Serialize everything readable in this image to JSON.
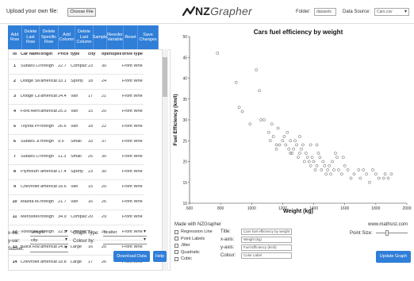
{
  "header": {
    "upload_label": "Upload your own file:",
    "choose_file": "Choose File",
    "logo_prefix": "NZ",
    "logo_suffix": "Grapher",
    "folder_label": "Folder:",
    "folder_value": "datasets",
    "source_label": "Data Source:",
    "source_value": "Cars.csv"
  },
  "table_buttons": [
    {
      "label": "Add Row"
    },
    {
      "label": "Delete Last Row"
    },
    {
      "label": "Delete Specific Row"
    },
    {
      "label": "Add Column"
    },
    {
      "label": "Delete Last Column"
    },
    {
      "label": "Sample"
    },
    {
      "label": "Reorder Variable"
    },
    {
      "label": "Reset"
    },
    {
      "label": "Save Changes"
    }
  ],
  "table": {
    "headers": [
      "id",
      "Car Name",
      "origin",
      "Price",
      "type",
      "city",
      "openspeed",
      "drive type"
    ],
    "rows": [
      [
        "1",
        "Subaru Legacy",
        "foreign",
        "22.7",
        "Compact",
        "23",
        "30",
        "Front Whe"
      ],
      [
        "2",
        "Dodge Stealth",
        "american",
        "33.1",
        "Sporty",
        "18",
        "24",
        "Front Whe"
      ],
      [
        "3",
        "Dodge Caravan",
        "american",
        "24.4",
        "Van",
        "17",
        "21",
        "Front Whe"
      ],
      [
        "4",
        "Ford Aerostar",
        "american",
        "25.3",
        "Van",
        "15",
        "20",
        "Front Whe"
      ],
      [
        "5",
        "Toyota Previa",
        "foreign",
        "26.6",
        "Van",
        "18",
        "22",
        "Front Whe"
      ],
      [
        "6",
        "Subaru Justy",
        "foreign",
        "9.5",
        "Small",
        "33",
        "37",
        "Front Whe"
      ],
      [
        "7",
        "Subaru Loyale",
        "foreign",
        "11.3",
        "Small",
        "25",
        "30",
        "Front Whe"
      ],
      [
        "8",
        "Plymouth Laser",
        "american",
        "17.4",
        "Sporty",
        "23",
        "30",
        "Front Whe"
      ],
      [
        "9",
        "Chevrolet Astro",
        "american",
        "18.6",
        "Van",
        "15",
        "20",
        "Front Whe"
      ],
      [
        "10",
        "Mazda MX6",
        "foreign",
        "21.7",
        "Van",
        "16",
        "26",
        "Front Whe"
      ],
      [
        "11",
        "Mercedes-Benz 190E",
        "foreign",
        "34.9",
        "Compact",
        "20",
        "29",
        "Front Whe"
      ],
      [
        "12",
        "Volvo 240",
        "foreign",
        "22.5",
        "Compact",
        "21",
        "26",
        "Front Whe"
      ],
      [
        "13",
        "Buick Roadmaster",
        "american",
        "24.9",
        "Large",
        "16",
        "25",
        "Front Whe"
      ],
      [
        "14",
        "Chevrolet Caprice",
        "american",
        "18.8",
        "Large",
        "17",
        "26",
        "Front Whe"
      ]
    ]
  },
  "controls": {
    "xvar_label": "x-var:",
    "xvar_value": "Weight",
    "yvar_label": "y-var:",
    "yvar_value": "city",
    "subset_label": "Subset:",
    "subset_value": "",
    "graph_type_label": "Graph Type:",
    "graph_type_value": "scatter",
    "colour_by_label": "Colour by:",
    "colour_by_value": "",
    "download_label": "Download Data",
    "help_label": "Help",
    "update_label": "Update Graph",
    "point_size_label": "Point Size:",
    "point_size_fraction": 0.35
  },
  "options": {
    "checkboxes": [
      "Regression Line",
      "Point Labels",
      "Jitter",
      "Quadratic",
      "Cubic"
    ],
    "title_label": "Title:",
    "title_value": "Cars fuel efficiency by weight",
    "xaxis_label": "x-axis:",
    "xaxis_value": "Weight (kg)",
    "yaxis_label": "y-axis:",
    "yaxis_value": "Fuel Efficiency (km/l)",
    "colour_label": "Colour:",
    "colour_value": "Color Label"
  },
  "footer": {
    "made_with": "Made with NZGrapher",
    "site": "www.mathsnz.com"
  },
  "colors": {
    "accent": "#2f7ed8",
    "point": "#555555"
  },
  "chart_data": {
    "type": "scatter",
    "title": "Cars fuel efficiency by weight",
    "xlabel": "Weight (kg)",
    "ylabel": "Fuel Efficiency (km/l)",
    "xlim": [
      600,
      2000
    ],
    "ylim": [
      10,
      50
    ],
    "xticks": [
      600,
      800,
      1000,
      1200,
      1400,
      1600,
      1800,
      2000
    ],
    "yticks": [
      10,
      15,
      20,
      25,
      30,
      35,
      40,
      45,
      50
    ],
    "grid": false,
    "points": [
      [
        780,
        46
      ],
      [
        900,
        39
      ],
      [
        920,
        33
      ],
      [
        940,
        32
      ],
      [
        1030,
        42
      ],
      [
        1050,
        37
      ],
      [
        990,
        29
      ],
      [
        1060,
        30
      ],
      [
        1080,
        30
      ],
      [
        1110,
        27
      ],
      [
        1120,
        25
      ],
      [
        1140,
        26
      ],
      [
        1160,
        24
      ],
      [
        1160,
        23
      ],
      [
        1180,
        24
      ],
      [
        1200,
        25
      ],
      [
        1210,
        26
      ],
      [
        1220,
        24
      ],
      [
        1240,
        23
      ],
      [
        1250,
        25
      ],
      [
        1250,
        22
      ],
      [
        1260,
        22
      ],
      [
        1270,
        23
      ],
      [
        1280,
        25
      ],
      [
        1290,
        24
      ],
      [
        1300,
        21
      ],
      [
        1310,
        22
      ],
      [
        1320,
        23
      ],
      [
        1330,
        24
      ],
      [
        1340,
        20
      ],
      [
        1350,
        22
      ],
      [
        1360,
        21
      ],
      [
        1370,
        20
      ],
      [
        1380,
        24
      ],
      [
        1380,
        19
      ],
      [
        1390,
        21
      ],
      [
        1400,
        20
      ],
      [
        1410,
        18
      ],
      [
        1420,
        19
      ],
      [
        1430,
        22
      ],
      [
        1440,
        21
      ],
      [
        1450,
        18
      ],
      [
        1460,
        20
      ],
      [
        1470,
        19
      ],
      [
        1480,
        17
      ],
      [
        1490,
        18
      ],
      [
        1500,
        19
      ],
      [
        1510,
        17
      ],
      [
        1520,
        20
      ],
      [
        1530,
        18
      ],
      [
        1550,
        21
      ],
      [
        1560,
        18
      ],
      [
        1580,
        17
      ],
      [
        1600,
        19
      ],
      [
        1620,
        18
      ],
      [
        1640,
        16
      ],
      [
        1660,
        17
      ],
      [
        1700,
        16
      ],
      [
        1720,
        18
      ],
      [
        1760,
        15
      ],
      [
        1780,
        18
      ],
      [
        1800,
        17
      ],
      [
        1820,
        16
      ],
      [
        1860,
        17
      ],
      [
        1880,
        16
      ],
      [
        1900,
        17
      ],
      [
        1130,
        29
      ],
      [
        1170,
        28
      ],
      [
        1230,
        27
      ],
      [
        1310,
        26
      ],
      [
        1420,
        24
      ],
      [
        1540,
        22
      ],
      [
        1590,
        21
      ],
      [
        1690,
        18
      ],
      [
        1740,
        17
      ],
      [
        1850,
        16
      ]
    ]
  }
}
